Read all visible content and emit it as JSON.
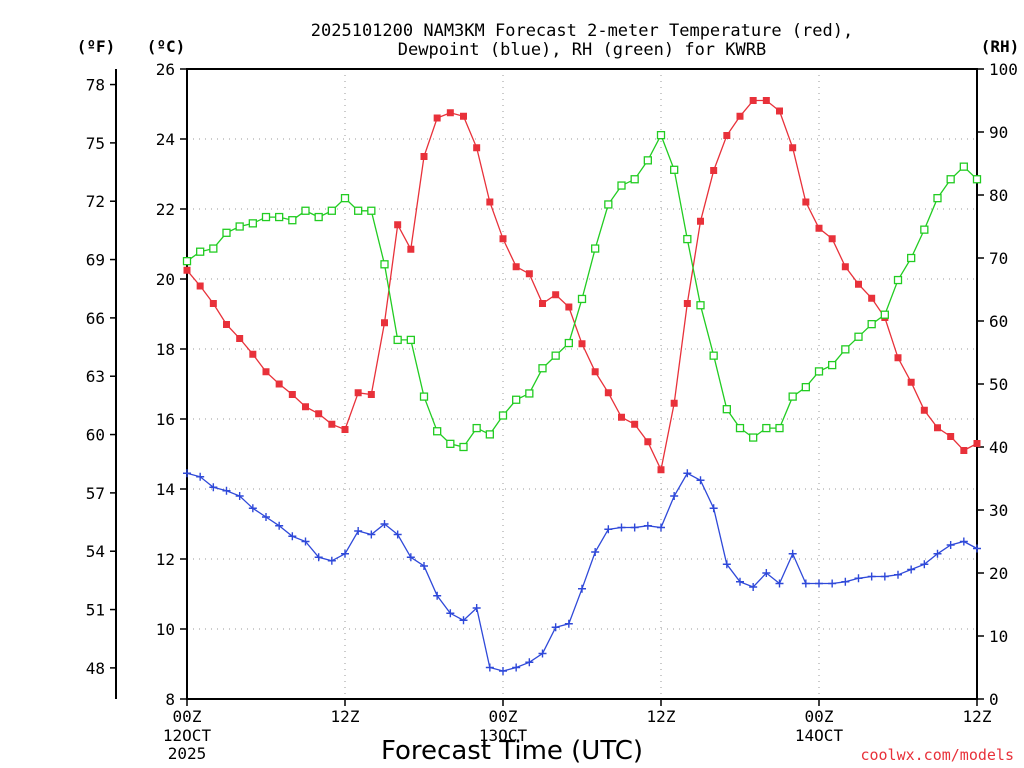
{
  "chart_data": {
    "type": "line",
    "title_line1": "2025101200 NAM3KM Forecast 2-meter Temperature (red),",
    "title_line2": "Dewpoint (blue), RH (green) for KWRB",
    "xlabel": "Forecast Time (UTC)",
    "credit": "coolwx.com/models",
    "units": {
      "fahrenheit": "(ºF)",
      "celsius": "(ºC)",
      "rh": "(RH)"
    },
    "x_range_hours": [
      0,
      60
    ],
    "x_ticks": [
      {
        "hour": 0,
        "line1": "00Z",
        "line2": "12OCT",
        "line3": "2025"
      },
      {
        "hour": 12,
        "line1": "12Z",
        "line2": "",
        "line3": ""
      },
      {
        "hour": 24,
        "line1": "00Z",
        "line2": "13OCT",
        "line3": ""
      },
      {
        "hour": 36,
        "line1": "12Z",
        "line2": "",
        "line3": ""
      },
      {
        "hour": 48,
        "line1": "00Z",
        "line2": "14OCT",
        "line3": ""
      },
      {
        "hour": 60,
        "line1": "12Z",
        "line2": "",
        "line3": ""
      }
    ],
    "celsius_axis": {
      "range": [
        8,
        26
      ],
      "ticks": [
        "8",
        "10",
        "12",
        "14",
        "16",
        "18",
        "20",
        "22",
        "24",
        "26"
      ]
    },
    "fahrenheit_axis": {
      "ticks": [
        "48",
        "51",
        "54",
        "57",
        "60",
        "63",
        "66",
        "69",
        "72",
        "75",
        "78"
      ]
    },
    "rh_axis": {
      "range": [
        0,
        100
      ],
      "ticks": [
        "0",
        "10",
        "20",
        "30",
        "40",
        "50",
        "60",
        "70",
        "80",
        "90",
        "100"
      ]
    },
    "series": [
      {
        "name": "Temperature",
        "units": "C",
        "color": "#e8313a",
        "marker": "filled-square",
        "values": [
          20.25,
          19.8,
          19.3,
          18.7,
          18.3,
          17.85,
          17.35,
          17.0,
          16.7,
          16.35,
          16.15,
          15.85,
          15.7,
          16.75,
          16.7,
          18.75,
          21.55,
          20.85,
          23.5,
          24.6,
          24.75,
          24.65,
          23.75,
          22.2,
          21.15,
          20.35,
          20.15,
          19.3,
          19.55,
          19.2,
          18.15,
          17.35,
          16.75,
          16.05,
          15.85,
          15.35,
          14.55,
          16.45,
          19.3,
          21.65,
          23.1,
          24.1,
          24.65,
          25.1,
          25.1,
          24.8,
          23.75,
          22.2,
          21.45,
          21.15,
          20.35,
          19.85,
          19.45,
          18.9,
          17.75,
          17.05,
          16.25,
          15.75,
          15.5,
          15.1,
          15.3
        ]
      },
      {
        "name": "Dewpoint",
        "units": "C",
        "color": "#2f49d9",
        "marker": "plus",
        "values": [
          14.45,
          14.35,
          14.05,
          13.95,
          13.8,
          13.45,
          13.2,
          12.95,
          12.65,
          12.5,
          12.05,
          11.95,
          12.15,
          12.8,
          12.7,
          13.0,
          12.7,
          12.05,
          11.8,
          10.95,
          10.45,
          10.25,
          10.6,
          8.9,
          8.8,
          8.9,
          9.05,
          9.3,
          10.05,
          10.15,
          11.15,
          12.2,
          12.85,
          12.9,
          12.9,
          12.95,
          12.9,
          13.8,
          14.45,
          14.25,
          13.45,
          11.85,
          11.35,
          11.2,
          11.6,
          11.3,
          12.15,
          11.3,
          11.3,
          11.3,
          11.35,
          11.45,
          11.5,
          11.5,
          11.55,
          11.7,
          11.85,
          12.15,
          12.4,
          12.5,
          12.3
        ]
      },
      {
        "name": "RH",
        "units": "%",
        "color": "#22cc22",
        "marker": "open-square",
        "values": [
          69.5,
          71.0,
          71.5,
          74.0,
          75.0,
          75.5,
          76.5,
          76.5,
          76.0,
          77.5,
          76.5,
          77.5,
          79.5,
          77.5,
          77.5,
          69.0,
          57.0,
          57.0,
          48.0,
          42.5,
          40.5,
          40.0,
          43.0,
          42.0,
          45.0,
          47.5,
          48.5,
          52.5,
          54.5,
          56.5,
          63.5,
          71.5,
          78.5,
          81.5,
          82.5,
          85.5,
          89.5,
          84.0,
          73.0,
          62.5,
          54.5,
          46.0,
          43.0,
          41.5,
          43.0,
          43.0,
          48.0,
          49.5,
          52.0,
          53.0,
          55.5,
          57.5,
          59.5,
          61.0,
          66.5,
          70.0,
          74.5,
          79.5,
          82.5,
          84.5,
          82.5
        ]
      }
    ]
  }
}
